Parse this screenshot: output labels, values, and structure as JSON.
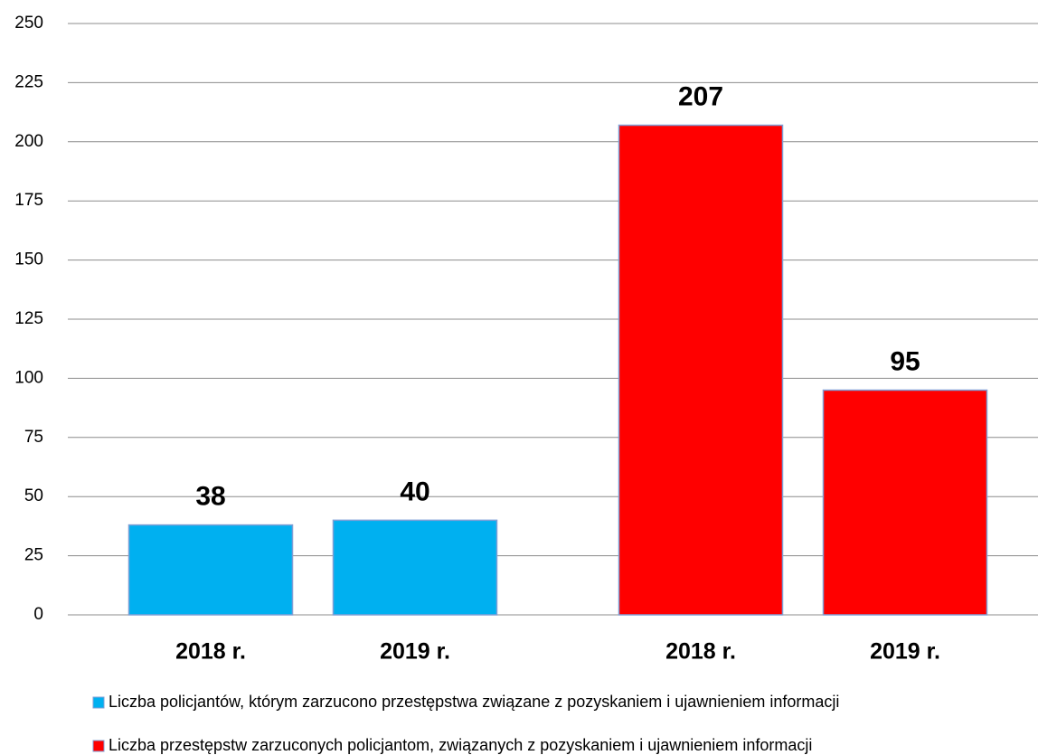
{
  "chart_data": {
    "type": "bar",
    "categories": [
      "2018 r.",
      "2019 r.",
      "2018 r.",
      "2019 r."
    ],
    "series": [
      {
        "name": "Liczba policjantów, którym zarzucono przestępstwa związane z pozyskaniem i ujawnieniem informacji",
        "color": "#00b0f0",
        "values": [
          38,
          40,
          null,
          null
        ]
      },
      {
        "name": "Liczba przestępstw zarzuconych policjantom, związanych z pozyskaniem i ujawnieniem informacji",
        "color": "#ff0000",
        "values": [
          null,
          null,
          207,
          95
        ]
      }
    ],
    "ylim": [
      0,
      250
    ],
    "yticks": [
      0,
      25,
      50,
      75,
      100,
      125,
      150,
      175,
      200,
      225,
      250
    ],
    "grid": true,
    "legend": "bottom"
  }
}
